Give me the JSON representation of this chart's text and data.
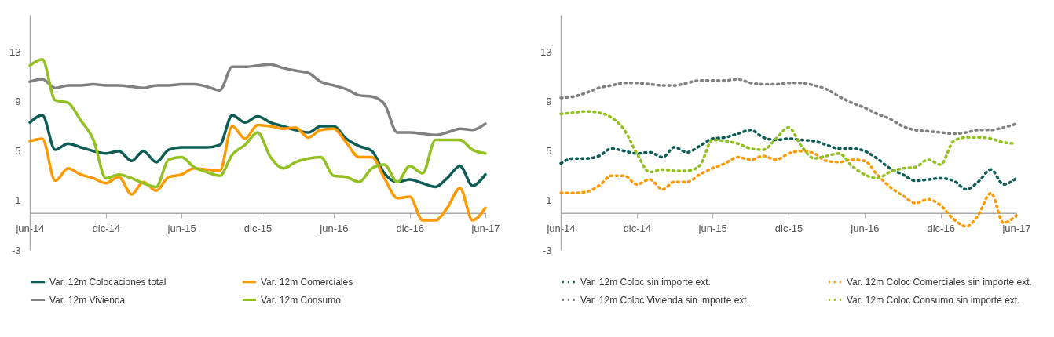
{
  "chart_data": [
    {
      "type": "line",
      "x": [
        "2014-06",
        "2014-07",
        "2014-08",
        "2014-09",
        "2014-10",
        "2014-11",
        "2014-12",
        "2015-01",
        "2015-02",
        "2015-03",
        "2015-04",
        "2015-05",
        "2015-06",
        "2015-07",
        "2015-08",
        "2015-09",
        "2015-10",
        "2015-11",
        "2015-12",
        "2016-01",
        "2016-02",
        "2016-03",
        "2016-04",
        "2016-05",
        "2016-06",
        "2016-07",
        "2016-08",
        "2016-09",
        "2016-10",
        "2016-11",
        "2016-12",
        "2017-01",
        "2017-02",
        "2017-03",
        "2017-04",
        "2017-05",
        "2017-06"
      ],
      "series": [
        {
          "name": "Var. 12m Colocaciones total",
          "color": "#0d5c55",
          "line_style": "solid",
          "values": [
            7.3,
            7.9,
            5.1,
            5.6,
            5.3,
            5.0,
            4.8,
            5.0,
            4.2,
            5.0,
            4.1,
            5.1,
            5.3,
            5.3,
            5.3,
            5.5,
            7.9,
            7.3,
            7.8,
            7.3,
            7.0,
            6.7,
            6.5,
            7.0,
            7.0,
            6.0,
            5.4,
            5.0,
            3.2,
            2.5,
            2.7,
            2.4,
            2.1,
            2.8,
            3.8,
            2.2,
            3.1
          ]
        },
        {
          "name": "Var. 12m Comerciales",
          "color": "#ff9900",
          "line_style": "solid",
          "values": [
            5.8,
            6.0,
            2.6,
            3.6,
            3.1,
            2.8,
            2.4,
            2.9,
            1.5,
            2.5,
            1.8,
            2.9,
            3.1,
            3.6,
            3.5,
            3.4,
            7.0,
            6.0,
            7.1,
            7.0,
            6.8,
            6.9,
            6.1,
            6.7,
            6.8,
            5.7,
            4.5,
            4.5,
            2.8,
            1.2,
            1.3,
            -0.6,
            -0.6,
            0.4,
            2.0,
            -0.6,
            0.4
          ]
        },
        {
          "name": "Var. 12m  Vivienda",
          "color": "#808080",
          "line_style": "solid",
          "values": [
            10.6,
            10.8,
            10.1,
            10.3,
            10.3,
            10.4,
            10.3,
            10.3,
            10.2,
            10.1,
            10.3,
            10.3,
            10.4,
            10.4,
            10.2,
            9.9,
            11.8,
            11.8,
            11.9,
            12.0,
            11.7,
            11.5,
            11.3,
            10.6,
            10.3,
            10.0,
            9.5,
            9.4,
            8.8,
            6.5,
            6.5,
            6.4,
            6.3,
            6.5,
            6.8,
            6.7,
            7.2
          ]
        },
        {
          "name": "Var. 12m  Consumo",
          "color": "#92c020",
          "line_style": "solid",
          "values": [
            11.9,
            12.4,
            9.1,
            8.9,
            7.5,
            5.9,
            2.8,
            3.1,
            2.8,
            2.4,
            2.1,
            4.3,
            4.5,
            3.7,
            3.3,
            3.0,
            4.7,
            5.5,
            6.5,
            4.5,
            3.6,
            4.1,
            4.4,
            4.5,
            3.0,
            2.9,
            2.5,
            3.6,
            3.9,
            2.5,
            3.8,
            3.2,
            5.9,
            5.9,
            5.9,
            5.1,
            4.8
          ]
        }
      ],
      "xlim": [
        "2014-06",
        "2017-06"
      ],
      "xticks": [
        {
          "value": "2014-06",
          "label": "jun-14"
        },
        {
          "value": "2014-12",
          "label": "dic-14"
        },
        {
          "value": "2015-06",
          "label": "jun-15"
        },
        {
          "value": "2015-12",
          "label": "dic-15"
        },
        {
          "value": "2016-06",
          "label": "jun-16"
        },
        {
          "value": "2016-12",
          "label": "dic-16"
        },
        {
          "value": "2017-06",
          "label": "jun-17"
        }
      ],
      "ylim": [
        -3,
        16
      ],
      "yticks": [
        -3,
        1,
        5,
        9,
        13
      ],
      "legend": "bottom"
    },
    {
      "type": "line",
      "x": [
        "2014-06",
        "2014-07",
        "2014-08",
        "2014-09",
        "2014-10",
        "2014-11",
        "2014-12",
        "2015-01",
        "2015-02",
        "2015-03",
        "2015-04",
        "2015-05",
        "2015-06",
        "2015-07",
        "2015-08",
        "2015-09",
        "2015-10",
        "2015-11",
        "2015-12",
        "2016-01",
        "2016-02",
        "2016-03",
        "2016-04",
        "2016-05",
        "2016-06",
        "2016-07",
        "2016-08",
        "2016-09",
        "2016-10",
        "2016-11",
        "2016-12",
        "2017-01",
        "2017-02",
        "2017-03",
        "2017-04",
        "2017-05",
        "2017-06"
      ],
      "series": [
        {
          "name": "Var. 12m Coloc sin importe ext.",
          "color": "#0d5c55",
          "line_style": "dotted",
          "values": [
            4.0,
            4.4,
            4.4,
            4.6,
            5.2,
            5.0,
            4.8,
            4.9,
            4.5,
            5.3,
            4.9,
            5.4,
            6.0,
            6.1,
            6.4,
            6.7,
            6.1,
            5.9,
            6.0,
            5.9,
            5.8,
            5.5,
            5.2,
            5.2,
            5.0,
            4.4,
            3.6,
            3.1,
            2.6,
            2.7,
            2.8,
            2.6,
            1.9,
            2.5,
            3.5,
            2.3,
            2.8
          ]
        },
        {
          "name": "Var. 12m Coloc Comerciales  sin importe ext.",
          "color": "#ff9900",
          "line_style": "dotted",
          "values": [
            1.6,
            1.6,
            1.7,
            2.2,
            3.0,
            3.0,
            2.3,
            2.7,
            1.9,
            2.5,
            2.5,
            3.1,
            3.6,
            4.0,
            4.5,
            4.3,
            4.6,
            4.3,
            4.8,
            5.0,
            4.8,
            4.2,
            4.1,
            4.3,
            4.2,
            3.1,
            2.1,
            1.4,
            0.8,
            1.1,
            0.6,
            -0.5,
            -1.1,
            -0.2,
            1.6,
            -0.8,
            -0.2
          ]
        },
        {
          "name": "Var. 12m Coloc Vivienda  sin importe ext.",
          "color": "#808080",
          "line_style": "dotted",
          "values": [
            9.3,
            9.4,
            9.7,
            10.1,
            10.3,
            10.5,
            10.5,
            10.4,
            10.3,
            10.3,
            10.5,
            10.7,
            10.7,
            10.7,
            10.8,
            10.5,
            10.4,
            10.4,
            10.5,
            10.5,
            10.3,
            10.0,
            9.4,
            8.9,
            8.5,
            8.0,
            7.6,
            7.0,
            6.7,
            6.6,
            6.5,
            6.4,
            6.5,
            6.7,
            6.7,
            6.9,
            7.2
          ]
        },
        {
          "name": "Var. 12m Coloc Consumo   sin importe ext.",
          "color": "#92c020",
          "line_style": "dotted",
          "values": [
            8.0,
            8.1,
            8.2,
            8.1,
            7.7,
            6.7,
            4.8,
            3.3,
            3.5,
            3.4,
            3.4,
            3.8,
            5.9,
            5.8,
            5.6,
            5.2,
            5.1,
            6.0,
            6.9,
            5.4,
            4.4,
            4.6,
            4.8,
            3.8,
            3.1,
            2.8,
            3.3,
            3.6,
            3.7,
            4.3,
            3.9,
            5.8,
            6.1,
            6.1,
            6.0,
            5.7,
            5.6
          ]
        }
      ],
      "xlim": [
        "2014-06",
        "2017-06"
      ],
      "xticks": [
        {
          "value": "2014-06",
          "label": "jun-14"
        },
        {
          "value": "2014-12",
          "label": "dic-14"
        },
        {
          "value": "2015-06",
          "label": "jun-15"
        },
        {
          "value": "2015-12",
          "label": "dic-15"
        },
        {
          "value": "2016-06",
          "label": "jun-16"
        },
        {
          "value": "2016-12",
          "label": "dic-16"
        },
        {
          "value": "2017-06",
          "label": "jun-17"
        }
      ],
      "ylim": [
        -3,
        16
      ],
      "yticks": [
        -3,
        1,
        5,
        9,
        13
      ],
      "legend": "bottom"
    }
  ]
}
